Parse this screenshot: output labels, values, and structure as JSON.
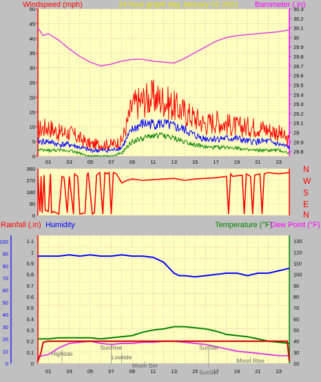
{
  "header": {
    "left_label": "Windspeed (mph)",
    "center_label": "24 hour graph day   January 02 2021",
    "right_label": "Barometer (.in)"
  },
  "bottom_header": {
    "rainfall": "Rainfall (.in)",
    "humidity": "Humidity",
    "temperature": "Temperature (°F)",
    "dewpoint": "Dew Point (°F)"
  },
  "compass": [
    "N",
    "W",
    "S",
    "E",
    "N"
  ],
  "colors": {
    "plot_bg": "#ffffc0",
    "grid": "#e8a8a8",
    "axis_text": "#000000",
    "windspeed": "#ff0000",
    "wind_avg": "#0000ff",
    "wind_low": "#008000",
    "barometer": "#e040e0",
    "humidity": "#0000ff",
    "temperature": "#008000",
    "dewpoint": "#e040e0",
    "rainfall": "#d00000",
    "title_yellow": "#f0f000",
    "title_magenta": "#ff00ff",
    "title_red": "#ff0000",
    "title_blue": "#0000ff",
    "title_green": "#008000"
  },
  "chart_data": [
    {
      "type": "line",
      "title": "24 hour graph day   January 02 2021",
      "x_ticks": [
        "01",
        "03",
        "05",
        "07",
        "09",
        "11",
        "13",
        "15",
        "17",
        "19",
        "21",
        "23"
      ],
      "xlim": [
        0,
        24
      ],
      "y_left": {
        "label": "Windspeed (mph)",
        "ticks": [
          "0",
          "5",
          "10",
          "15",
          "20",
          "25",
          "30",
          "35",
          "40",
          "45",
          "50"
        ],
        "ylim": [
          0,
          50
        ]
      },
      "y_right": {
        "label": "Barometer (.in)",
        "ticks": [
          "28.8",
          "28.9",
          "29",
          "29.1",
          "29.2",
          "29.3",
          "29.4",
          "29.5",
          "29.6",
          "29.7",
          "29.8",
          "29.9",
          "30",
          "30.1",
          "30.2",
          "30.3"
        ],
        "ylim": [
          28.75,
          30.3
        ]
      },
      "series": [
        {
          "name": "Barometer (.in)",
          "axis": "right",
          "x": [
            0,
            0.5,
            1,
            2,
            3,
            4,
            5,
            6,
            7,
            8,
            9,
            10,
            11,
            12,
            13,
            14,
            15,
            16,
            17,
            18,
            19,
            20,
            21,
            22,
            23,
            24
          ],
          "y": [
            30.1,
            30.02,
            30.04,
            29.97,
            29.88,
            29.8,
            29.74,
            29.7,
            29.72,
            29.75,
            29.77,
            29.77,
            29.75,
            29.74,
            29.73,
            29.78,
            29.84,
            29.9,
            29.96,
            30.0,
            30.02,
            30.03,
            30.04,
            30.05,
            30.06,
            30.08
          ]
        },
        {
          "name": "gust",
          "axis": "left",
          "x": [
            0,
            1,
            2,
            3,
            4,
            5,
            6,
            7,
            8,
            9,
            10,
            11,
            12,
            13,
            14,
            15,
            16,
            17,
            18,
            19,
            20,
            21,
            22,
            23,
            24
          ],
          "y": [
            9,
            10,
            8,
            8,
            6,
            4,
            4,
            4,
            5,
            17,
            19,
            20,
            19,
            17,
            15,
            13,
            11,
            12,
            11,
            10,
            10,
            10,
            9,
            8,
            5
          ]
        },
        {
          "name": "average",
          "axis": "left",
          "x": [
            0,
            1,
            2,
            3,
            4,
            5,
            6,
            7,
            8,
            9,
            10,
            11,
            12,
            13,
            14,
            15,
            16,
            17,
            18,
            19,
            20,
            21,
            22,
            23,
            24
          ],
          "y": [
            5,
            5,
            4,
            4,
            3,
            2,
            2,
            2,
            3,
            9,
            11,
            11,
            11,
            10,
            9,
            7,
            6,
            6,
            6,
            6,
            5,
            5,
            5,
            4,
            3
          ]
        },
        {
          "name": "low",
          "axis": "left",
          "x": [
            0,
            1,
            2,
            3,
            4,
            5,
            6,
            7,
            8,
            9,
            10,
            11,
            12,
            13,
            14,
            15,
            16,
            17,
            18,
            19,
            20,
            21,
            22,
            23,
            24
          ],
          "y": [
            2,
            2,
            2,
            2,
            1,
            0,
            0,
            0,
            1,
            5,
            6,
            7,
            7,
            6,
            5,
            4,
            3,
            3,
            3,
            3,
            2,
            2,
            2,
            2,
            1
          ]
        }
      ]
    },
    {
      "type": "line",
      "x_ticks": [],
      "xlim": [
        0,
        24
      ],
      "y_left": {
        "label": "",
        "ticks": [
          "0",
          "30",
          "60",
          "90",
          "120",
          "150",
          "180",
          "210",
          "240",
          "270",
          "300",
          "330",
          "360"
        ],
        "ylim": [
          0,
          360
        ]
      },
      "series": [
        {
          "name": "wind direction",
          "x": [
            0,
            0.2,
            0.3,
            0.4,
            0.6,
            0.7,
            1.0,
            1.2,
            1.3,
            1.5,
            2.0,
            2.3,
            2.5,
            2.8,
            3.0,
            3.4,
            3.5,
            3.8,
            4.0,
            4.5,
            4.7,
            4.8,
            5.2,
            5.4,
            5.6,
            5.9,
            6.2,
            6.4,
            6.6,
            6.8,
            7.0,
            7.2,
            7.5,
            8.0,
            8.5,
            9.0,
            10,
            11,
            12,
            13,
            14,
            15,
            16,
            17,
            18.0,
            18.2,
            18.4,
            18.6,
            19.5,
            19.7,
            19.9,
            20.3,
            20.5,
            20.7,
            21.2,
            21.4,
            21.6,
            22,
            23,
            24
          ],
          "y": [
            300,
            30,
            300,
            20,
            310,
            40,
            30,
            320,
            20,
            30,
            10,
            300,
            290,
            20,
            300,
            10,
            320,
            300,
            10,
            20,
            310,
            330,
            10,
            20,
            310,
            330,
            10,
            330,
            320,
            330,
            10,
            330,
            320,
            250,
            270,
            280,
            270,
            275,
            280,
            285,
            270,
            280,
            285,
            290,
            300,
            10,
            320,
            300,
            310,
            10,
            320,
            300,
            10,
            310,
            320,
            10,
            320,
            330,
            320,
            330
          ]
        }
      ]
    },
    {
      "type": "line",
      "x_ticks": [
        "01",
        "03",
        "05",
        "07",
        "09",
        "11",
        "13",
        "15",
        "17",
        "19",
        "21",
        "23"
      ],
      "xlim": [
        0,
        24
      ],
      "y_left_outer": {
        "label": "Humidity",
        "ticks": [
          "0",
          "10",
          "20",
          "30",
          "40",
          "50",
          "60",
          "70",
          "80",
          "90",
          "100"
        ],
        "ylim": [
          0,
          100
        ]
      },
      "y_left_inner": {
        "label": "Rainfall (.in)",
        "ticks": [
          "0",
          "0.1",
          "0.2",
          "0.3",
          "0.4",
          "0.5",
          "0.6",
          "0.7",
          "0.8",
          "0.9",
          "1",
          "1.1"
        ],
        "ylim": [
          0,
          1.15
        ]
      },
      "y_right": {
        "label": "Temperature (°F)",
        "ticks": [
          "20",
          "30",
          "40",
          "50",
          "60",
          "70",
          "80",
          "90",
          "100",
          "110",
          "120",
          "130"
        ],
        "ylim": [
          20,
          135
        ]
      },
      "series": [
        {
          "name": "Humidity",
          "axis": "left_outer",
          "x": [
            0,
            1,
            2,
            3,
            4,
            5,
            6,
            7,
            8,
            9,
            10,
            11,
            12,
            13,
            13.5,
            14,
            15,
            16,
            17,
            18,
            19,
            20,
            21,
            22,
            23,
            24
          ],
          "y": [
            88,
            88,
            88,
            89,
            88,
            89,
            88,
            88,
            89,
            88,
            88,
            87,
            83,
            74,
            72,
            72,
            71,
            72,
            73,
            74,
            74,
            72,
            74,
            74,
            76,
            78
          ]
        },
        {
          "name": "Temperature (°F)",
          "axis": "right",
          "x": [
            0,
            1,
            2,
            3,
            4,
            5,
            6,
            7,
            8,
            9,
            10,
            11,
            12,
            13,
            14,
            15,
            16,
            17,
            18,
            19,
            20,
            21,
            22,
            23,
            24
          ],
          "y": [
            42,
            42,
            43,
            43,
            43,
            43,
            42,
            43,
            44,
            45,
            48,
            50,
            51,
            53,
            53,
            52,
            51,
            49,
            46,
            45,
            44,
            42,
            40,
            39,
            38
          ]
        },
        {
          "name": "Dew Point (°F)",
          "axis": "right",
          "x": [
            0,
            1,
            2,
            3,
            4,
            5,
            6,
            7,
            8,
            9,
            10,
            11,
            12,
            13,
            14,
            15,
            16,
            17,
            18,
            19,
            20,
            21,
            22,
            23,
            24
          ],
          "y": [
            26,
            28,
            34,
            38,
            39,
            40,
            38,
            37,
            38,
            38,
            39,
            39,
            40,
            40,
            39,
            38,
            37,
            35,
            33,
            31,
            30,
            29,
            28,
            27,
            27
          ]
        },
        {
          "name": "Rainfall (.in)",
          "axis": "left_inner",
          "x": [
            0,
            0.3,
            0.5,
            1,
            3,
            5,
            7,
            9,
            11,
            13,
            15,
            17,
            19,
            21,
            23,
            23.8,
            24
          ],
          "y": [
            0.02,
            0.1,
            0.19,
            0.2,
            0.2,
            0.2,
            0.2,
            0.2,
            0.2,
            0.2,
            0.2,
            0.2,
            0.2,
            0.2,
            0.2,
            0.2,
            0.02
          ]
        }
      ],
      "annotations": [
        {
          "label": "Hightide",
          "x": 2.3
        },
        {
          "label": "SunRise",
          "x": 7.0
        },
        {
          "label": "Lowtide",
          "x": 8.0
        },
        {
          "label": "Moon Set",
          "x": 10.2
        },
        {
          "label": "SunSet",
          "x": 16.3
        },
        {
          "label": "SunSet",
          "x": 16.3
        },
        {
          "label": "Moon Rise",
          "x": 20.3
        }
      ]
    }
  ]
}
